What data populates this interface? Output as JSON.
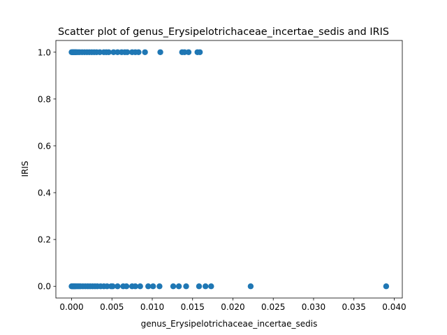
{
  "chart_data": {
    "type": "scatter",
    "title": "Scatter plot of genus_Erysipelotrichaceae_incertae_sedis and IRIS",
    "xlabel": "genus_Erysipelotrichaceae_incertae_sedis",
    "ylabel": "IRIS",
    "xlim": [
      -0.00195,
      0.041
    ],
    "ylim": [
      -0.05,
      1.05
    ],
    "xticks": [
      0.0,
      0.005,
      0.01,
      0.015,
      0.02,
      0.025,
      0.03,
      0.035,
      0.04
    ],
    "xtick_labels": [
      "0.000",
      "0.005",
      "0.010",
      "0.015",
      "0.020",
      "0.025",
      "0.030",
      "0.035",
      "0.040"
    ],
    "yticks": [
      0.0,
      0.2,
      0.4,
      0.6,
      0.8,
      1.0
    ],
    "ytick_labels": [
      "0.0",
      "0.2",
      "0.4",
      "0.6",
      "0.8",
      "1.0"
    ],
    "grid": false,
    "marker_color": "#1f77b4",
    "points": [
      {
        "x": 0.0,
        "y": 1
      },
      {
        "x": 0.0001,
        "y": 1
      },
      {
        "x": 0.0002,
        "y": 1
      },
      {
        "x": 0.0003,
        "y": 1
      },
      {
        "x": 0.0004,
        "y": 1
      },
      {
        "x": 0.0005,
        "y": 1
      },
      {
        "x": 0.0006,
        "y": 1
      },
      {
        "x": 0.0008,
        "y": 1
      },
      {
        "x": 0.001,
        "y": 1
      },
      {
        "x": 0.0013,
        "y": 1
      },
      {
        "x": 0.0016,
        "y": 1
      },
      {
        "x": 0.0019,
        "y": 1
      },
      {
        "x": 0.0022,
        "y": 1
      },
      {
        "x": 0.0025,
        "y": 1
      },
      {
        "x": 0.0028,
        "y": 1
      },
      {
        "x": 0.0031,
        "y": 1
      },
      {
        "x": 0.0035,
        "y": 1
      },
      {
        "x": 0.004,
        "y": 1
      },
      {
        "x": 0.0043,
        "y": 1
      },
      {
        "x": 0.0046,
        "y": 1
      },
      {
        "x": 0.0052,
        "y": 1
      },
      {
        "x": 0.0057,
        "y": 1
      },
      {
        "x": 0.0062,
        "y": 1
      },
      {
        "x": 0.0066,
        "y": 1
      },
      {
        "x": 0.0069,
        "y": 1
      },
      {
        "x": 0.0075,
        "y": 1
      },
      {
        "x": 0.0079,
        "y": 1
      },
      {
        "x": 0.0083,
        "y": 1
      },
      {
        "x": 0.0091,
        "y": 1
      },
      {
        "x": 0.011,
        "y": 1
      },
      {
        "x": 0.0137,
        "y": 1
      },
      {
        "x": 0.014,
        "y": 1
      },
      {
        "x": 0.0145,
        "y": 1
      },
      {
        "x": 0.0156,
        "y": 1
      },
      {
        "x": 0.0159,
        "y": 1
      },
      {
        "x": 0.0,
        "y": 0
      },
      {
        "x": 0.0001,
        "y": 0
      },
      {
        "x": 0.0002,
        "y": 0
      },
      {
        "x": 0.0003,
        "y": 0
      },
      {
        "x": 0.0004,
        "y": 0
      },
      {
        "x": 0.0005,
        "y": 0
      },
      {
        "x": 0.0007,
        "y": 0
      },
      {
        "x": 0.0009,
        "y": 0
      },
      {
        "x": 0.0011,
        "y": 0
      },
      {
        "x": 0.0014,
        "y": 0
      },
      {
        "x": 0.0017,
        "y": 0
      },
      {
        "x": 0.002,
        "y": 0
      },
      {
        "x": 0.0023,
        "y": 0
      },
      {
        "x": 0.0026,
        "y": 0
      },
      {
        "x": 0.0029,
        "y": 0
      },
      {
        "x": 0.0032,
        "y": 0
      },
      {
        "x": 0.0036,
        "y": 0
      },
      {
        "x": 0.004,
        "y": 0
      },
      {
        "x": 0.0044,
        "y": 0
      },
      {
        "x": 0.0049,
        "y": 0
      },
      {
        "x": 0.0051,
        "y": 0
      },
      {
        "x": 0.0057,
        "y": 0
      },
      {
        "x": 0.0064,
        "y": 0
      },
      {
        "x": 0.0068,
        "y": 0
      },
      {
        "x": 0.0075,
        "y": 0
      },
      {
        "x": 0.0079,
        "y": 0
      },
      {
        "x": 0.0085,
        "y": 0
      },
      {
        "x": 0.0095,
        "y": 0
      },
      {
        "x": 0.0101,
        "y": 0
      },
      {
        "x": 0.0109,
        "y": 0
      },
      {
        "x": 0.0126,
        "y": 0
      },
      {
        "x": 0.0133,
        "y": 0
      },
      {
        "x": 0.0142,
        "y": 0
      },
      {
        "x": 0.0158,
        "y": 0
      },
      {
        "x": 0.0166,
        "y": 0
      },
      {
        "x": 0.0173,
        "y": 0
      },
      {
        "x": 0.0222,
        "y": 0
      },
      {
        "x": 0.039,
        "y": 0
      }
    ]
  }
}
